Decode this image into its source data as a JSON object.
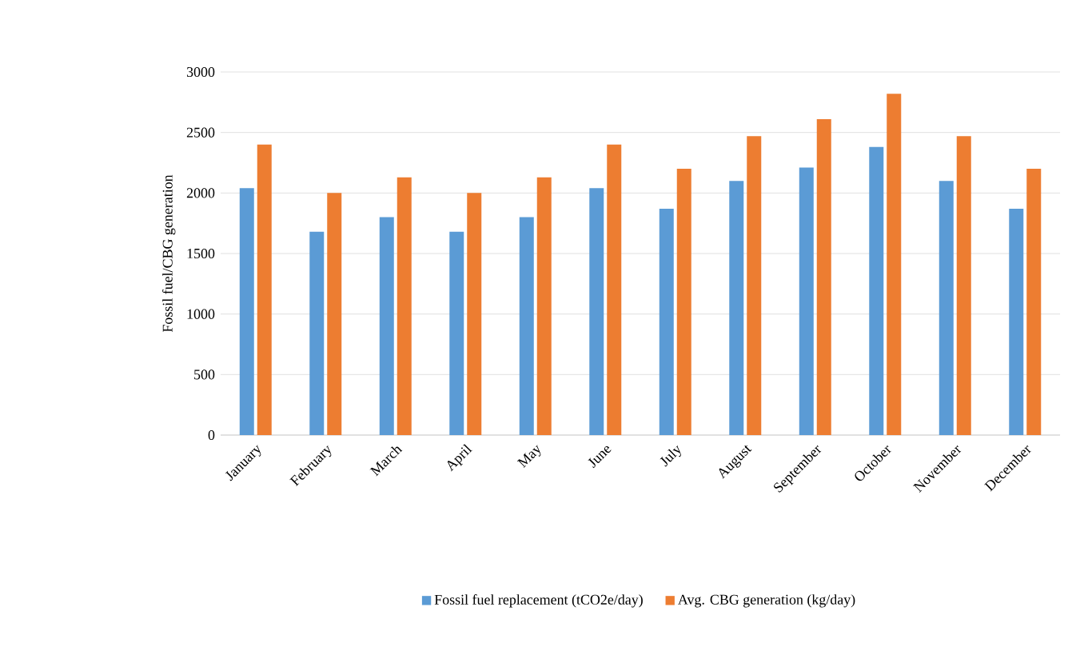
{
  "chart_data": {
    "type": "bar",
    "ylabel": "Fossil fuel/CBG generation",
    "categories": [
      "January",
      "February",
      "March",
      "April",
      "May",
      "June",
      "July",
      "August",
      "September",
      "October",
      "November",
      "December"
    ],
    "series": [
      {
        "name": "Fossil fuel replacement (tCO2e/day)",
        "color": "#5b9bd5",
        "values": [
          2040,
          1680,
          1800,
          1680,
          1800,
          2040,
          1870,
          2100,
          2210,
          2380,
          2100,
          1870
        ]
      },
      {
        "name": "Avg. CBG generation (kg/day)",
        "color": "#ed7d31",
        "values": [
          2400,
          2000,
          2130,
          2000,
          2130,
          2400,
          2200,
          2470,
          2610,
          2820,
          2470,
          2200
        ]
      }
    ],
    "ylim": [
      0,
      3000
    ],
    "yticks": [
      0,
      500,
      1000,
      1500,
      2000,
      2500,
      3000
    ],
    "grid": "y",
    "legend": "bottom"
  }
}
